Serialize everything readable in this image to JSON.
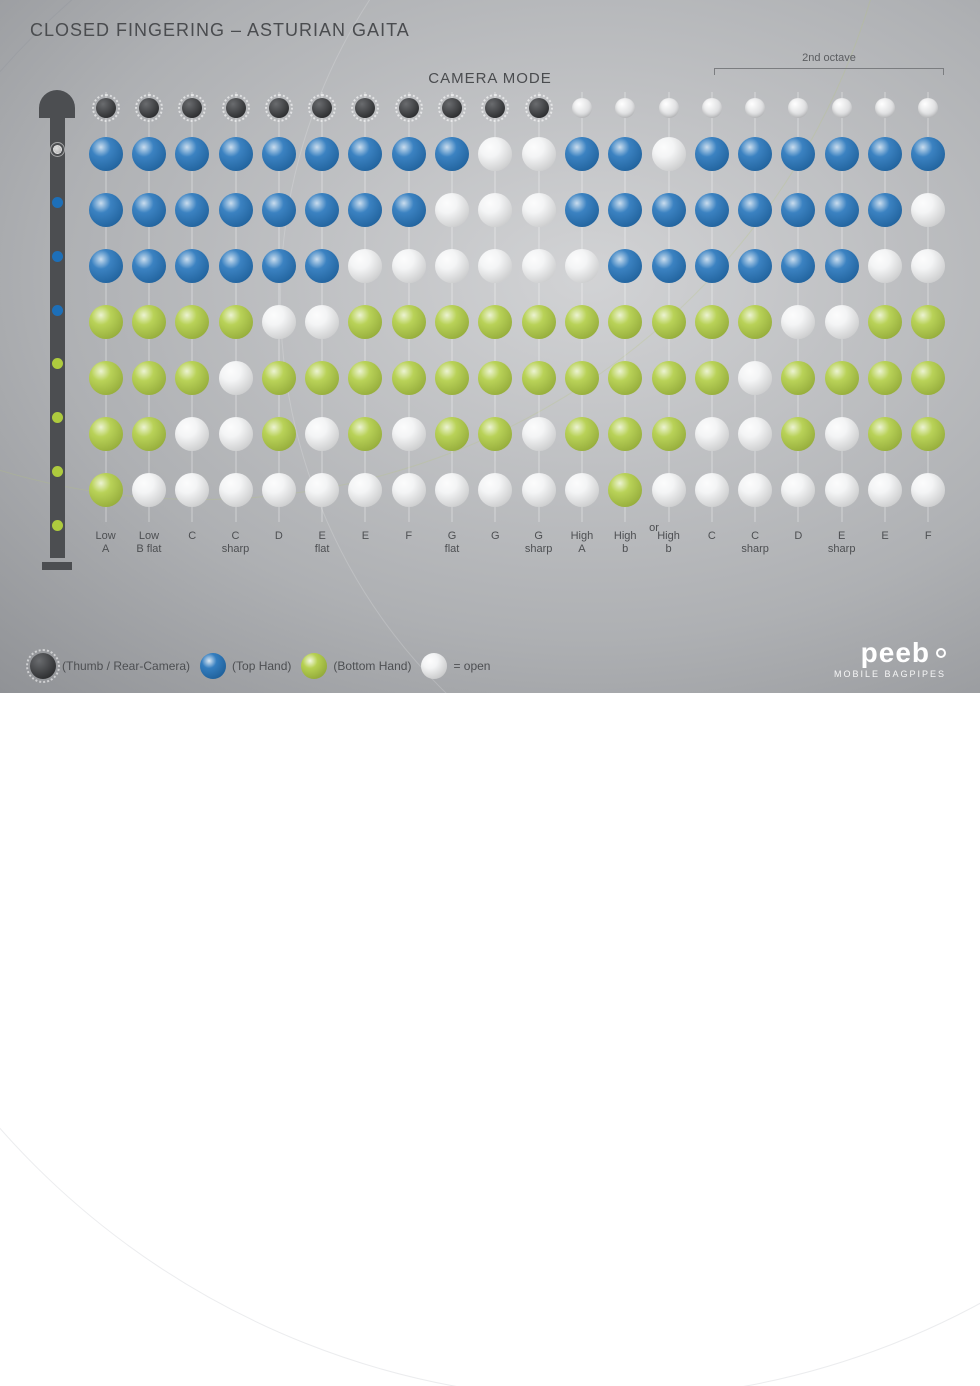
{
  "title": "CLOSED FINGERING – ASTURIAN GAITA",
  "subtitle": "CAMERA MODE",
  "octave_label": "2nd octave",
  "or_label": "or",
  "brand": {
    "name": "peeb",
    "tag": "MOBILE BAGPIPES"
  },
  "colors": {
    "thumb_closed": "#3a3b3d",
    "top_closed": "#1d6fb8",
    "bottom_closed": "#aecb3e",
    "open": "#f2f3f4",
    "instrument": "#4c4e51",
    "background_inner": "#d2d3d5",
    "background_outer": "#8c8e92"
  },
  "legend": [
    {
      "kind": "thumb",
      "label": "(Thumb / Rear-Camera)"
    },
    {
      "kind": "top",
      "label": "(Top Hand)"
    },
    {
      "kind": "bottom",
      "label": "(Bottom Hand)"
    },
    {
      "kind": "open",
      "label": "= open"
    }
  ],
  "row_kinds": [
    "thumb",
    "top",
    "top",
    "top",
    "bottom",
    "bottom",
    "bottom",
    "bottom"
  ],
  "notes": [
    {
      "line1": "Low",
      "line2": "A",
      "holes": [
        "C",
        "C",
        "C",
        "C",
        "C",
        "C",
        "C",
        "C"
      ]
    },
    {
      "line1": "Low",
      "line2": "B flat",
      "holes": [
        "C",
        "C",
        "C",
        "C",
        "C",
        "C",
        "C",
        "O"
      ]
    },
    {
      "line1": "C",
      "line2": "",
      "holes": [
        "C",
        "C",
        "C",
        "C",
        "C",
        "C",
        "O",
        "O"
      ]
    },
    {
      "line1": "C",
      "line2": "sharp",
      "holes": [
        "C",
        "C",
        "C",
        "C",
        "C",
        "O",
        "O",
        "O"
      ]
    },
    {
      "line1": "D",
      "line2": "",
      "holes": [
        "C",
        "C",
        "C",
        "C",
        "O",
        "C",
        "C",
        "O"
      ]
    },
    {
      "line1": "E",
      "line2": "flat",
      "holes": [
        "C",
        "C",
        "C",
        "C",
        "O",
        "C",
        "O",
        "O"
      ]
    },
    {
      "line1": "E",
      "line2": "",
      "holes": [
        "C",
        "C",
        "C",
        "O",
        "C",
        "C",
        "C",
        "O"
      ]
    },
    {
      "line1": "F",
      "line2": "",
      "holes": [
        "C",
        "C",
        "C",
        "O",
        "C",
        "C",
        "O",
        "O"
      ]
    },
    {
      "line1": "G",
      "line2": "flat",
      "holes": [
        "C",
        "C",
        "O",
        "O",
        "C",
        "C",
        "C",
        "O"
      ]
    },
    {
      "line1": "G",
      "line2": "",
      "holes": [
        "C",
        "O",
        "O",
        "O",
        "C",
        "C",
        "C",
        "O"
      ]
    },
    {
      "line1": "G",
      "line2": "sharp",
      "holes": [
        "C",
        "O",
        "O",
        "O",
        "C",
        "C",
        "O",
        "O"
      ]
    },
    {
      "line1": "High",
      "line2": "A",
      "holes": [
        "O",
        "C",
        "C",
        "O",
        "C",
        "C",
        "C",
        "O"
      ]
    },
    {
      "line1": "High",
      "line2": "b",
      "holes": [
        "O",
        "C",
        "C",
        "C",
        "C",
        "C",
        "C",
        "C"
      ],
      "or_after": true
    },
    {
      "line1": "High",
      "line2": "b",
      "holes": [
        "O",
        "O",
        "C",
        "C",
        "C",
        "C",
        "C",
        "O"
      ]
    },
    {
      "line1": "C",
      "line2": "",
      "holes": [
        "O",
        "C",
        "C",
        "C",
        "C",
        "C",
        "O",
        "O"
      ]
    },
    {
      "line1": "C",
      "line2": "sharp",
      "holes": [
        "O",
        "C",
        "C",
        "C",
        "C",
        "O",
        "O",
        "O"
      ]
    },
    {
      "line1": "D",
      "line2": "",
      "holes": [
        "O",
        "C",
        "C",
        "C",
        "O",
        "C",
        "C",
        "O"
      ]
    },
    {
      "line1": "E",
      "line2": "sharp",
      "holes": [
        "O",
        "C",
        "C",
        "C",
        "O",
        "C",
        "O",
        "O"
      ]
    },
    {
      "line1": "E",
      "line2": "",
      "holes": [
        "O",
        "C",
        "C",
        "O",
        "C",
        "C",
        "C",
        "O"
      ]
    },
    {
      "line1": "F",
      "line2": "",
      "holes": [
        "O",
        "C",
        "O",
        "O",
        "C",
        "C",
        "C",
        "O"
      ]
    }
  ],
  "octave_start_index": 14,
  "chanter_reference": [
    "C",
    "C",
    "C",
    "C",
    "C",
    "C",
    "C",
    "C"
  ]
}
